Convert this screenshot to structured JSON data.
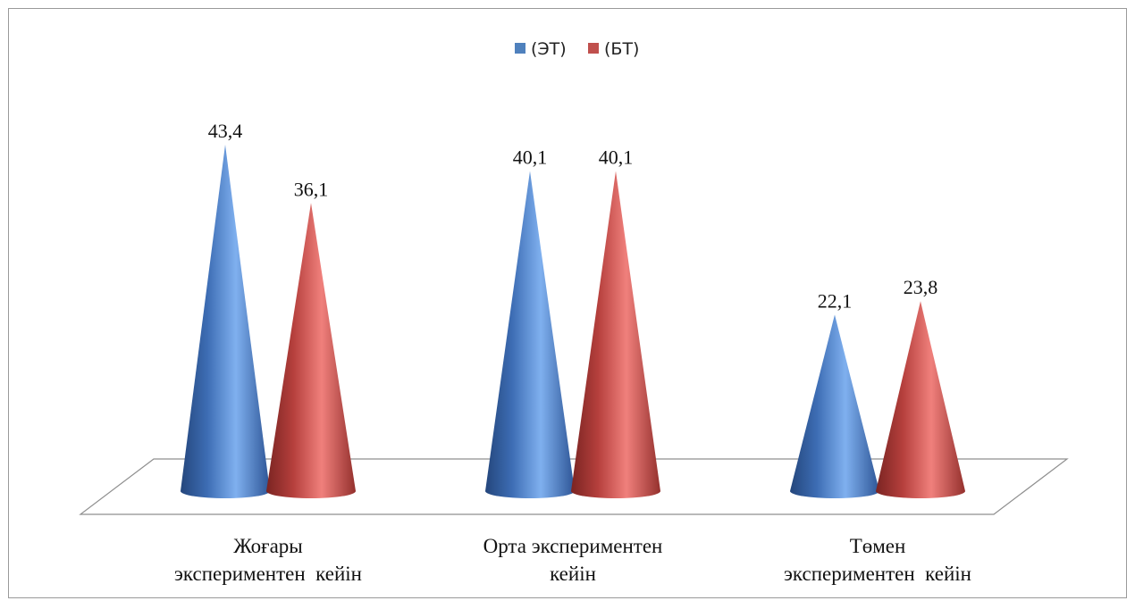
{
  "chart_data": {
    "type": "bar",
    "bar_shape": "cone-3d",
    "categories": [
      "Жоғары экспериментен  кейін",
      "Орта экспериментен кейін",
      "Төмен экспериментен  кейін"
    ],
    "category_lines": [
      [
        "Жоғары",
        "экспериментен  кейін"
      ],
      [
        "Орта экспериментен",
        "кейін"
      ],
      [
        "Төмен",
        "экспериментен  кейін"
      ]
    ],
    "series": [
      {
        "name": "(ЭТ)",
        "values": [
          43.4,
          40.1,
          22.1
        ],
        "labels": [
          "43,4",
          "40,1",
          "22,1"
        ],
        "color": "#4f81bd"
      },
      {
        "name": "(БТ)",
        "values": [
          36.1,
          40.1,
          23.8
        ],
        "labels": [
          "36,1",
          "40,1",
          "23,8"
        ],
        "color": "#c0504d"
      }
    ],
    "legend_position": "top",
    "gridlines": false,
    "ylim": [
      0,
      50
    ]
  }
}
